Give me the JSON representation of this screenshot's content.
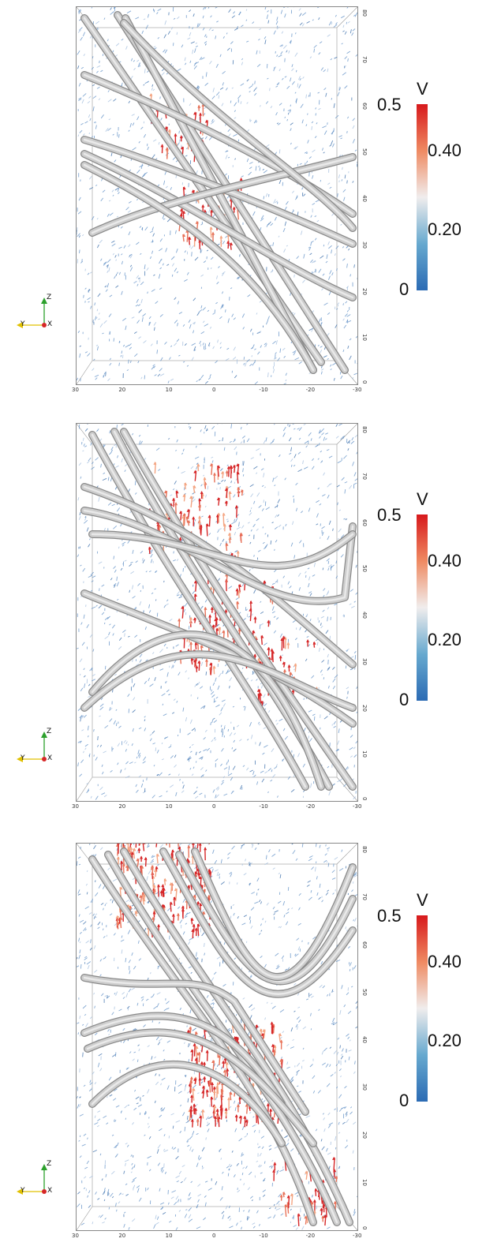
{
  "panels": [
    {
      "id": "top"
    },
    {
      "id": "middle"
    },
    {
      "id": "bottom"
    }
  ],
  "x_axis_ticks": [
    "30",
    "20",
    "10",
    "0",
    "-10",
    "-20",
    "-30"
  ],
  "z_axis_ticks": [
    "0",
    "10",
    "20",
    "30",
    "40",
    "50",
    "60",
    "70",
    "80"
  ],
  "colorbar": {
    "title": "V",
    "labels": [
      "0.5",
      "0.40",
      "0.20",
      "0"
    ],
    "colors": {
      "high": "#d7191c",
      "mid": "#f0eded",
      "low": "#2c6bb4"
    }
  },
  "triad": {
    "z": "Z",
    "y": "Y",
    "x": "X",
    "colors": {
      "z": "#2ca02c",
      "y": "#e0c000",
      "x": "#d62728"
    }
  },
  "colors": {
    "tube": "#c9c9c9",
    "tube_edge": "#8a8a8a",
    "vector_low": "#4a7fb9",
    "vector_high": "#d62728"
  }
}
